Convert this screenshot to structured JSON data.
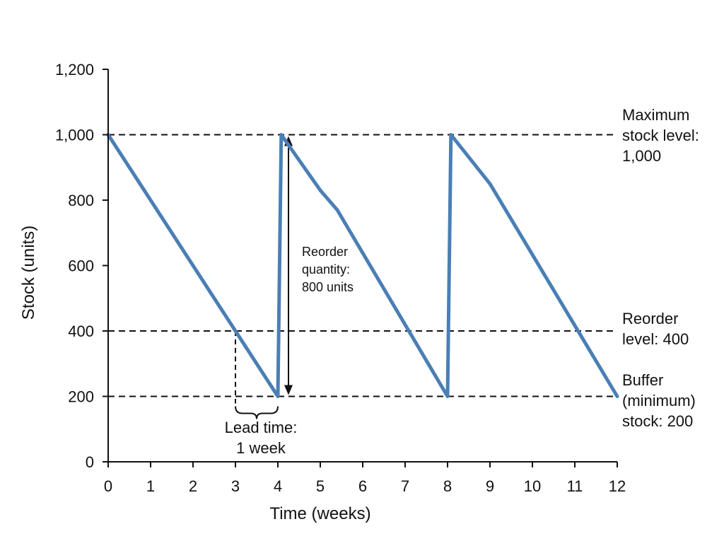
{
  "chart_data": {
    "type": "line",
    "title": "",
    "xlabel": "Time (weeks)",
    "ylabel": "Stock (units)",
    "xlim": [
      0,
      12
    ],
    "ylim": [
      0,
      1200
    ],
    "xticks": [
      0,
      1,
      2,
      3,
      4,
      5,
      6,
      7,
      8,
      9,
      10,
      11,
      12
    ],
    "yticks": [
      0,
      200,
      400,
      600,
      800,
      1000,
      1200
    ],
    "ytick_labels": [
      "0",
      "200",
      "400",
      "600",
      "800",
      "1,000",
      "1,200"
    ],
    "grid": false,
    "series": [
      {
        "color": "#4a7fb5",
        "x": [
          0,
          4,
          4.08,
          5,
          5.4,
          8,
          8.08,
          9,
          12
        ],
        "y": [
          1000,
          200,
          1000,
          830,
          770,
          200,
          1000,
          850,
          200
        ]
      }
    ],
    "reference_lines": [
      {
        "y": 1000,
        "label": [
          "Maximum",
          "stock level:",
          "1,000"
        ]
      },
      {
        "y": 400,
        "label": [
          "Reorder",
          "level: 400"
        ]
      },
      {
        "y": 200,
        "label": [
          "Buffer",
          "(minimum)",
          "stock: 200"
        ]
      }
    ],
    "annotations": {
      "reorder_quantity": {
        "x": 4.25,
        "from": 200,
        "to": 1000,
        "label": [
          "Reorder",
          "quantity:",
          "800 units"
        ]
      },
      "lead_time": {
        "from": 3,
        "to": 4,
        "y": 400,
        "label": [
          "Lead time:",
          "1 week"
        ]
      }
    }
  }
}
